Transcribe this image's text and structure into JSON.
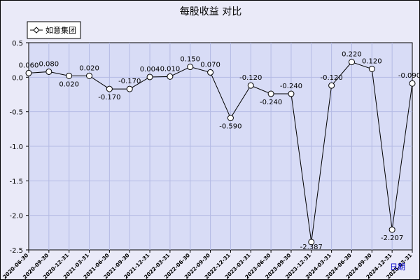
{
  "chart_data": {
    "type": "line",
    "title": "每股收益  对比",
    "xlabel": "日期",
    "ylabel": "",
    "ylim": [
      -2.5,
      0.5
    ],
    "yticks": [
      "0.5",
      "0.0",
      "-0.5",
      "-1.0",
      "-1.5",
      "-2.0",
      "-2.5"
    ],
    "ytick_values": [
      0.5,
      0.0,
      -0.5,
      -1.0,
      -1.5,
      -2.0,
      -2.5
    ],
    "grid": true,
    "legend_position": "top-left",
    "categories": [
      "2020-06-30",
      "2020-09-30",
      "2020-12-31",
      "2021-03-31",
      "2021-06-30",
      "2021-09-30",
      "2021-12-31",
      "2022-03-31",
      "2022-06-30",
      "2022-09-30",
      "2022-12-31",
      "2023-03-31",
      "2023-06-30",
      "2023-09-30",
      "2023-12-31",
      "2024-03-31",
      "2024-06-30",
      "2024-09-30",
      "2024-12-31",
      "2025-03-31"
    ],
    "series": [
      {
        "name": "如意集团",
        "values": [
          0.06,
          0.08,
          0.02,
          0.02,
          -0.17,
          -0.17,
          0.004,
          0.01,
          0.15,
          0.07,
          -0.59,
          -0.12,
          -0.24,
          -0.24,
          -2.387,
          -0.12,
          0.22,
          0.12,
          -2.207,
          -0.09
        ],
        "labels": [
          "0.060",
          "0.080",
          "0.020",
          "0.020",
          "-0.170",
          "-0.170",
          "0.004",
          "0.010",
          "0.150",
          "0.070",
          "-0.590",
          "-0.120",
          "-0.240",
          "-0.240",
          "-2.387",
          "-0.120",
          "0.220",
          "0.120",
          "-2.207",
          "-0.090"
        ],
        "color": "#000000"
      }
    ],
    "colors": {
      "plot_background": "#d8dcf6",
      "outer_background": "#eaeaf8",
      "grid": "#b4bae4",
      "line": "#000000",
      "unit_label": "#0000cc"
    }
  }
}
